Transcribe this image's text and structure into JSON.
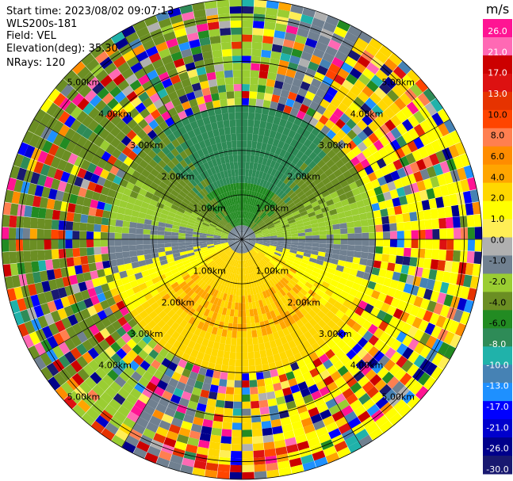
{
  "header": {
    "start_time": "Start time: 2023/08/02 09:07:13",
    "instrument": "WLS200s-181",
    "field": "Field: VEL",
    "elevation": "Elevation(deg): 35.30",
    "nrays": "NRays: 120"
  },
  "chart_data": {
    "type": "heatmap",
    "subtype": "ppi-polar",
    "field": "VEL",
    "unit": "m/s",
    "n_rays": 120,
    "range_rings_km": [
      1.0,
      2.0,
      3.0,
      4.0,
      5.0
    ],
    "max_range_km": 5.4,
    "range_labels": [
      "1.00km",
      "2.00km",
      "3.00km",
      "4.00km",
      "5.00km"
    ],
    "colorbar": {
      "unit_label": "m/s",
      "range": [
        -30.0,
        26.0
      ],
      "colors": [
        "#ff1493",
        "#ff69b4",
        "#cc0000",
        "#dd1111",
        "#e63300",
        "#ff4500",
        "#ff7f50",
        "#ff8c00",
        "#ffa500",
        "#ffd700",
        "#ffff00",
        "#ffee55",
        "#b0b0b0",
        "#708090",
        "#9acd32",
        "#6b8e23",
        "#228b22",
        "#2e8b57",
        "#20b2aa",
        "#4682b4",
        "#1e90ff",
        "#0000ff",
        "#0000cd",
        "#00008b",
        "#191970"
      ],
      "tick_labels": [
        "26.0",
        "21.0",
        "17.0",
        "13.0",
        "10.0",
        "8.0",
        "6.0",
        "4.0",
        "2.0",
        "1.0",
        "0.0",
        "-1.0",
        "-2.0",
        "-4.0",
        "-6.0",
        "-8.0",
        "-10.0",
        "-13.0",
        "-17.0",
        "-21.0",
        "-26.0",
        "-30.0"
      ]
    },
    "axes_grid": true
  }
}
